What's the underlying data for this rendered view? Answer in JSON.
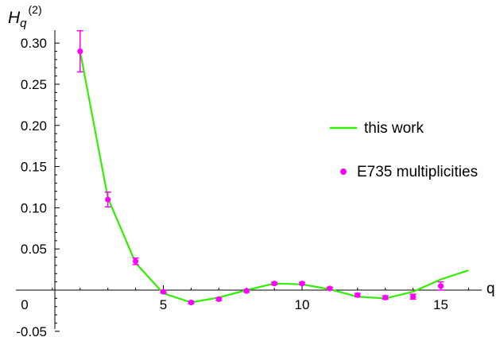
{
  "chart_data": {
    "type": "line",
    "ylabel_main": "H",
    "ylabel_sub": "q",
    "ylabel_sup": "(2)",
    "xlabel": "q",
    "xlim": [
      0,
      16.4
    ],
    "ylim": [
      -0.05,
      0.3
    ],
    "x_ticks": [
      0,
      5,
      10,
      15
    ],
    "y_ticks": [
      -0.05,
      0.05,
      0.1,
      0.15,
      0.2,
      0.25,
      0.3
    ],
    "y_tick_labels": [
      "-0.05",
      "0.05",
      "0.10",
      "0.15",
      "0.20",
      "0.25",
      "0.30"
    ],
    "grid": false,
    "legend_position": "right",
    "series": [
      {
        "name": "this work",
        "kind": "line",
        "color": "#33ee00",
        "x": [
          2,
          3,
          4,
          5,
          6,
          7,
          8,
          9,
          10,
          11,
          12,
          13,
          14,
          15,
          16
        ],
        "y": [
          0.29,
          0.112,
          0.033,
          -0.004,
          -0.015,
          -0.009,
          0.0,
          0.008,
          0.007,
          0.001,
          -0.008,
          -0.01,
          -0.002,
          0.013,
          0.024
        ]
      },
      {
        "name": "E735 multiplicities",
        "kind": "scatter",
        "color": "#ff00ff",
        "x": [
          2,
          3,
          4,
          5,
          6,
          7,
          8,
          9,
          10,
          11,
          12,
          13,
          14,
          15
        ],
        "y": [
          0.29,
          0.11,
          0.035,
          -0.002,
          -0.015,
          -0.011,
          -0.001,
          0.008,
          0.008,
          0.002,
          -0.006,
          -0.009,
          -0.008,
          0.005
        ],
        "err": [
          0.025,
          0.009,
          0.004,
          0.0015,
          0.0015,
          0.0015,
          0.0015,
          0.0015,
          0.0015,
          0.0015,
          0.002,
          0.002,
          0.003,
          0.005
        ]
      }
    ]
  }
}
